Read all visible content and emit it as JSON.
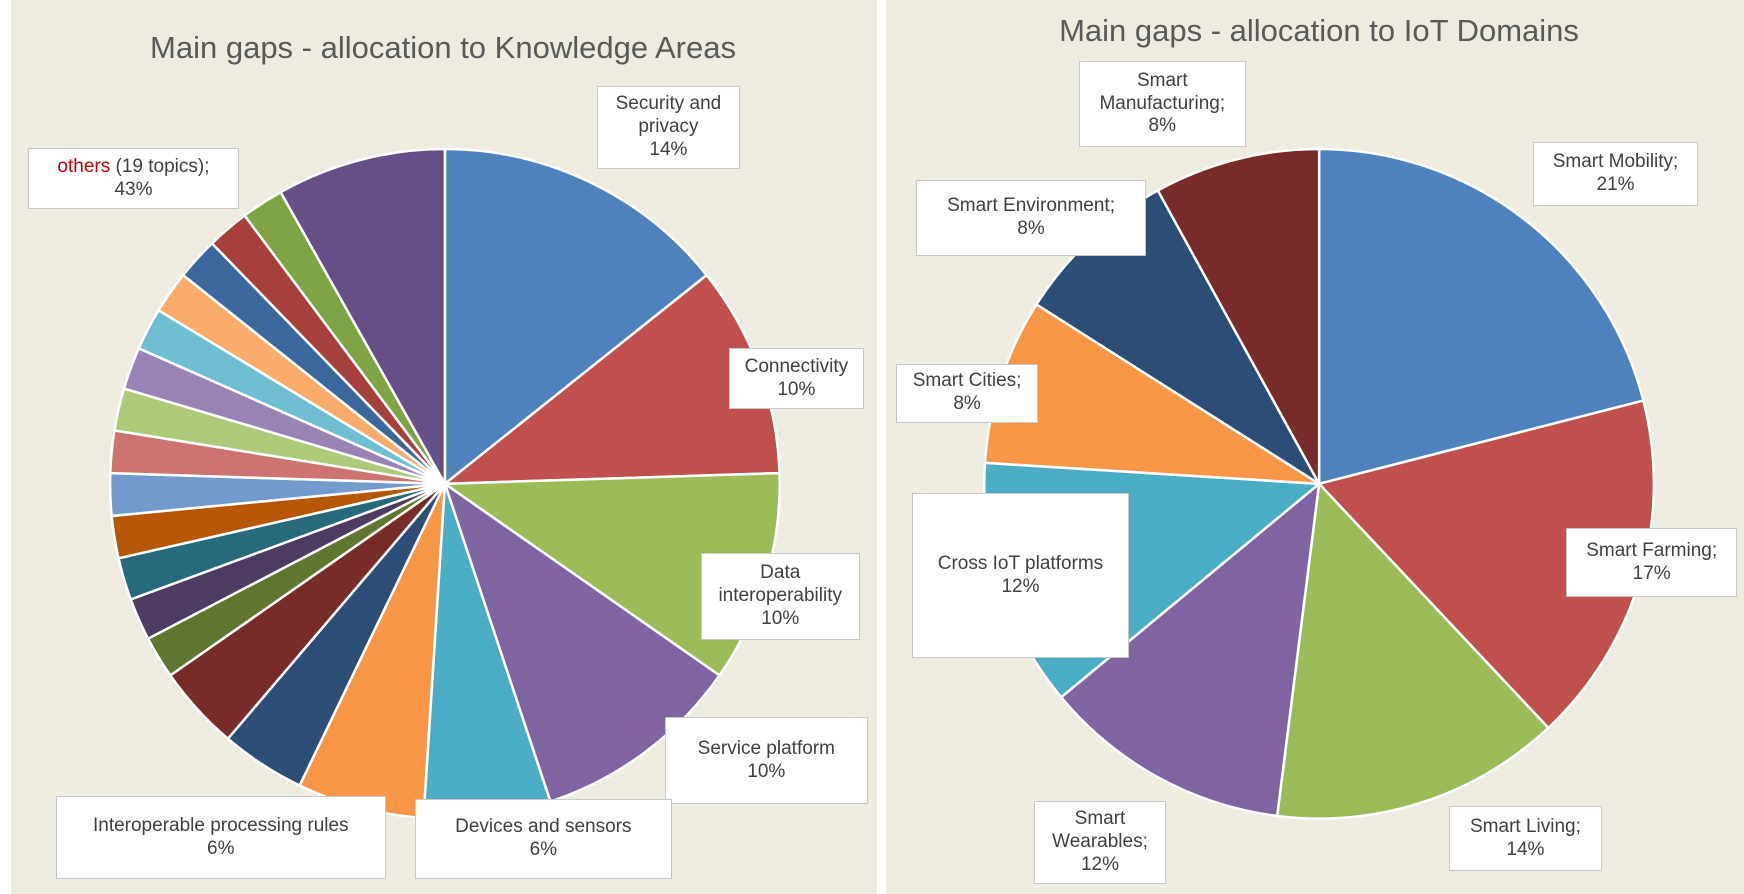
{
  "chart_data": [
    {
      "type": "pie",
      "title": "Main gaps - allocation to Knowledge Areas",
      "categories": [
        "Security and privacy",
        "Connectivity",
        "Data interoperability",
        "Service platform",
        "Devices and sensors",
        "Interoperable processing rules",
        null,
        null,
        null,
        null,
        null,
        null,
        null,
        null,
        null,
        null,
        null,
        null,
        null,
        null,
        null,
        null
      ],
      "values": [
        14,
        10,
        10,
        10,
        6,
        6,
        4,
        4,
        2,
        2,
        2,
        2,
        2,
        2,
        2,
        2,
        2,
        2,
        2,
        2,
        2,
        8
      ],
      "value_labels": [
        "14%",
        "10%",
        "10%",
        "10%",
        "6%",
        "6%",
        null,
        null,
        null,
        null,
        null,
        null,
        null,
        null,
        null,
        null,
        null,
        null,
        null,
        null,
        null,
        null
      ],
      "colors": [
        "#4f81bd",
        "#c0504d",
        "#9bbb59",
        "#8064a2",
        "#4bacc6",
        "#f79646",
        "#2c4d75",
        "#772c2a",
        "#5f7530",
        "#4d3b62",
        "#276a7c",
        "#b65708",
        "#729aca",
        "#cd7371",
        "#afc97a",
        "#9983b5",
        "#6fbdd1",
        "#f9ab6b",
        "#3a679c",
        "#a5403d",
        "#7da345",
        "#664e86"
      ],
      "others": {
        "label": "others",
        "note": "(19 topics);",
        "value": 43,
        "value_label": "43%"
      }
    },
    {
      "type": "pie",
      "title": "Main gaps - allocation to IoT Domains",
      "categories": [
        "Smart Mobility;",
        "Smart Farming;",
        "Smart Living;",
        "Smart Wearables;",
        "Cross IoT platforms",
        "Smart Cities;",
        "Smart Environment;",
        "Smart Manufacturing;"
      ],
      "values": [
        21,
        17,
        14,
        12,
        12,
        8,
        8,
        8
      ],
      "value_labels": [
        "21%",
        "17%",
        "14%",
        "12%",
        "12%",
        "8%",
        "8%",
        "8%"
      ],
      "colors": [
        "#4f81bd",
        "#c0504d",
        "#9bbb59",
        "#8064a2",
        "#4bacc6",
        "#f79646",
        "#2c4d75",
        "#772c2a"
      ]
    }
  ]
}
